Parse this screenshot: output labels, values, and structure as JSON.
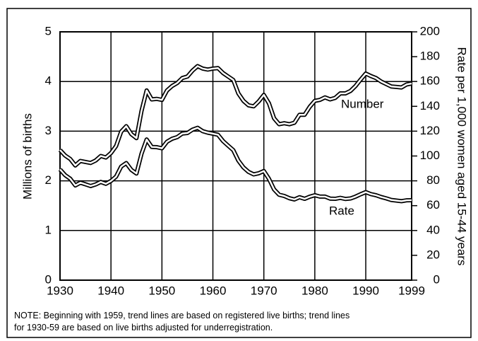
{
  "chart_data": {
    "type": "line",
    "ylabel": "Millions of births",
    "y2label": "Rate per 1,000 women aged 15-44 years",
    "note": [
      "NOTE: Beginning with 1959, trend lines are based on registered live births; trend lines",
      "for 1930-59 are based on live births adjusted for underregistration."
    ],
    "x": [
      1930,
      1931,
      1932,
      1933,
      1934,
      1935,
      1936,
      1937,
      1938,
      1939,
      1940,
      1941,
      1942,
      1943,
      1944,
      1945,
      1946,
      1947,
      1948,
      1949,
      1950,
      1951,
      1952,
      1953,
      1954,
      1955,
      1956,
      1957,
      1958,
      1959,
      1960,
      1961,
      1962,
      1963,
      1964,
      1965,
      1966,
      1967,
      1968,
      1969,
      1970,
      1971,
      1972,
      1973,
      1974,
      1975,
      1976,
      1977,
      1978,
      1979,
      1980,
      1981,
      1982,
      1983,
      1984,
      1985,
      1986,
      1987,
      1988,
      1989,
      1990,
      1991,
      1992,
      1993,
      1994,
      1995,
      1996,
      1997,
      1998,
      1999
    ],
    "series": [
      {
        "name": "Number",
        "color": "#000000",
        "values": [
          2.62,
          2.51,
          2.44,
          2.31,
          2.4,
          2.38,
          2.36,
          2.41,
          2.5,
          2.47,
          2.56,
          2.7,
          2.99,
          3.1,
          2.94,
          2.86,
          3.41,
          3.82,
          3.64,
          3.65,
          3.63,
          3.82,
          3.91,
          3.97,
          4.07,
          4.1,
          4.22,
          4.31,
          4.26,
          4.24,
          4.26,
          4.27,
          4.17,
          4.1,
          4.03,
          3.76,
          3.61,
          3.52,
          3.5,
          3.6,
          3.73,
          3.56,
          3.26,
          3.14,
          3.16,
          3.14,
          3.17,
          3.33,
          3.33,
          3.49,
          3.61,
          3.63,
          3.68,
          3.64,
          3.67,
          3.76,
          3.76,
          3.81,
          3.91,
          4.04,
          4.16,
          4.11,
          4.07,
          4.0,
          3.95,
          3.9,
          3.89,
          3.88,
          3.94,
          3.96
        ]
      },
      {
        "name": "Rate",
        "color": "#000000",
        "axis": "y2",
        "values": [
          89.2,
          84.6,
          81.7,
          76.3,
          78.5,
          77.2,
          75.8,
          77.1,
          79.1,
          77.6,
          79.9,
          83.4,
          91.5,
          94.3,
          88.8,
          85.9,
          101.9,
          113.3,
          107.3,
          107.1,
          106.2,
          111.5,
          113.9,
          115.2,
          118.1,
          118.5,
          121.2,
          122.7,
          120.0,
          118.8,
          118.0,
          117.1,
          112.0,
          108.3,
          104.7,
          96.3,
          90.8,
          87.2,
          85.2,
          86.1,
          87.9,
          81.6,
          73.1,
          68.8,
          67.8,
          66.0,
          65.0,
          66.8,
          65.5,
          67.2,
          68.4,
          67.3,
          67.3,
          65.7,
          65.5,
          66.3,
          65.4,
          65.8,
          67.3,
          69.2,
          70.9,
          69.3,
          68.4,
          67.0,
          65.9,
          64.6,
          64.1,
          63.6,
          64.3,
          64.4
        ]
      }
    ],
    "xlim": [
      1930,
      1999
    ],
    "xticks": [
      1930,
      1940,
      1950,
      1960,
      1970,
      1980,
      1990,
      1999
    ],
    "ylim": [
      0,
      5
    ],
    "yticks": [
      0,
      1,
      2,
      3,
      4,
      5
    ],
    "y2lim": [
      0,
      200
    ],
    "y2ticks": [
      0,
      20,
      40,
      60,
      80,
      100,
      120,
      140,
      160,
      180,
      200
    ],
    "grid": true
  }
}
